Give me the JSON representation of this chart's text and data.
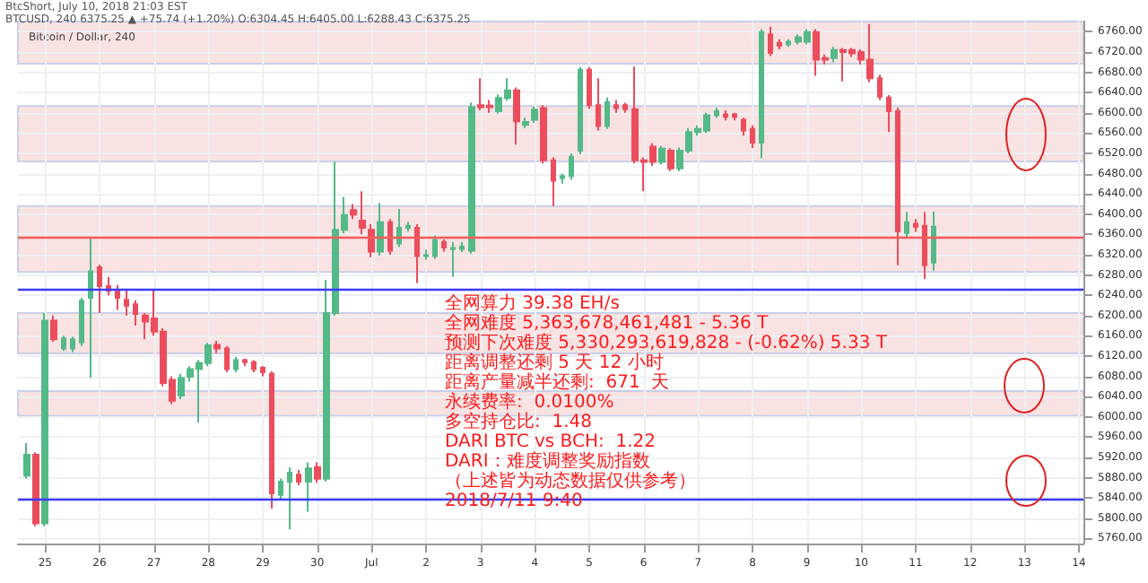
{
  "chart_data": {
    "type": "candlestick",
    "title": "Bitcoin / Dollar, 240",
    "subtitle": "BtcShort, July 10, 2018 21:03 EST",
    "annotations": [
      "BTCUSD, 240 6375.25 ▲ +75.74 (+1.20%) O:6304.45 H:6405.00 L:6288.43 C:6375.25",
      "全网算力 39.38 EH/s",
      "全网难度 5,363,678,461,481 - 5.36 T",
      "预测下次难度 5,330,293,619,828 - (-0.62%) 5.33 T",
      "距离调整还剩 5 天 12 小时",
      "距离产量减半还剩:  671  天",
      "永续费率:  0.0100%",
      "多空持仓比:  1.48",
      "DARI BTC vs BCH:  1.22",
      "DARI：难度调整奖励指数",
      "（上述皆为动态数据仅供参考）",
      "2018/7/11 9:40"
    ],
    "x": [
      "2018-06-24T16:00",
      "2018-06-24T20:00",
      "2018-06-25T00:00",
      "2018-06-25T04:00",
      "2018-06-25T08:00",
      "2018-06-25T12:00",
      "2018-06-25T16:00",
      "2018-06-25T20:00",
      "2018-06-26T00:00",
      "2018-06-26T04:00",
      "2018-06-26T08:00",
      "2018-06-26T12:00",
      "2018-06-26T16:00",
      "2018-06-26T20:00",
      "2018-06-27T00:00",
      "2018-06-27T04:00",
      "2018-06-27T08:00",
      "2018-06-27T12:00",
      "2018-06-27T16:00",
      "2018-06-27T20:00",
      "2018-06-28T00:00",
      "2018-06-28T04:00",
      "2018-06-28T08:00",
      "2018-06-28T12:00",
      "2018-06-28T16:00",
      "2018-06-28T20:00",
      "2018-06-29T00:00",
      "2018-06-29T04:00",
      "2018-06-29T08:00",
      "2018-06-29T12:00",
      "2018-06-29T16:00",
      "2018-06-29T20:00",
      "2018-06-30T00:00",
      "2018-06-30T04:00",
      "2018-06-30T08:00",
      "2018-06-30T12:00",
      "2018-06-30T16:00",
      "2018-06-30T20:00",
      "2018-07-01T00:00",
      "2018-07-01T04:00",
      "2018-07-01T08:00",
      "2018-07-01T12:00",
      "2018-07-01T16:00",
      "2018-07-01T20:00",
      "2018-07-02T00:00",
      "2018-07-02T04:00",
      "2018-07-02T08:00",
      "2018-07-02T12:00",
      "2018-07-02T16:00",
      "2018-07-02T20:00",
      "2018-07-03T00:00",
      "2018-07-03T04:00",
      "2018-07-03T08:00",
      "2018-07-03T12:00",
      "2018-07-03T16:00",
      "2018-07-03T20:00",
      "2018-07-04T00:00",
      "2018-07-04T04:00",
      "2018-07-04T08:00",
      "2018-07-04T12:00",
      "2018-07-04T16:00",
      "2018-07-04T20:00",
      "2018-07-05T00:00",
      "2018-07-05T04:00",
      "2018-07-05T08:00",
      "2018-07-05T12:00",
      "2018-07-05T16:00",
      "2018-07-05T20:00",
      "2018-07-06T00:00",
      "2018-07-06T04:00",
      "2018-07-06T08:00",
      "2018-07-06T12:00",
      "2018-07-06T16:00",
      "2018-07-06T20:00",
      "2018-07-07T00:00",
      "2018-07-07T04:00",
      "2018-07-07T08:00",
      "2018-07-07T12:00",
      "2018-07-07T16:00",
      "2018-07-07T20:00",
      "2018-07-08T00:00",
      "2018-07-08T04:00",
      "2018-07-08T08:00",
      "2018-07-08T12:00",
      "2018-07-08T16:00",
      "2018-07-08T20:00",
      "2018-07-09T00:00",
      "2018-07-09T04:00",
      "2018-07-09T08:00",
      "2018-07-09T12:00",
      "2018-07-09T16:00",
      "2018-07-09T20:00",
      "2018-07-10T00:00",
      "2018-07-10T04:00",
      "2018-07-10T08:00",
      "2018-07-10T12:00",
      "2018-07-10T16:00",
      "2018-07-10T20:00",
      "2018-07-11T00:00",
      "2018-07-11T04:00",
      "2018-07-11T08:00"
    ],
    "ohlc": [
      [
        5884,
        5948,
        5878,
        5925
      ],
      [
        5925,
        5930,
        5784,
        5790
      ],
      [
        5790,
        6205,
        5784,
        6190
      ],
      [
        6190,
        6200,
        6148,
        6153
      ],
      [
        6135,
        6160,
        6130,
        6155
      ],
      [
        6135,
        6158,
        6128,
        6153
      ],
      [
        6147,
        6235,
        6140,
        6229
      ],
      [
        6235,
        6352,
        6077,
        6287
      ],
      [
        6295,
        6300,
        6205,
        6258
      ],
      [
        6258,
        6276,
        6240,
        6249
      ],
      [
        6249,
        6260,
        6211,
        6235
      ],
      [
        6231,
        6250,
        6200,
        6219
      ],
      [
        6222,
        6230,
        6180,
        6203
      ],
      [
        6200,
        6205,
        6153,
        6188
      ],
      [
        6194,
        6252,
        6160,
        6168
      ],
      [
        6168,
        6175,
        6060,
        6067
      ],
      [
        6073,
        6080,
        6025,
        6032
      ],
      [
        6042,
        6085,
        6035,
        6077
      ],
      [
        6079,
        6100,
        6070,
        6094
      ],
      [
        6094,
        6112,
        5989,
        6106
      ],
      [
        6106,
        6146,
        6100,
        6141
      ],
      [
        6142,
        6150,
        6125,
        6135
      ],
      [
        6135,
        6140,
        6088,
        6094
      ],
      [
        6094,
        6118,
        6088,
        6112
      ],
      [
        6112,
        6115,
        6100,
        6108
      ],
      [
        6108,
        6112,
        6088,
        6094
      ],
      [
        6097,
        6100,
        6080,
        6088
      ],
      [
        6085,
        6090,
        5819,
        5849
      ],
      [
        5846,
        5878,
        5835,
        5872
      ],
      [
        5872,
        5900,
        5778,
        5890
      ],
      [
        5886,
        5895,
        5865,
        5872
      ],
      [
        5872,
        5910,
        5813,
        5898
      ],
      [
        5901,
        5910,
        5870,
        5878
      ],
      [
        5878,
        6270,
        5872,
        6205
      ],
      [
        6205,
        6504,
        6200,
        6369
      ],
      [
        6369,
        6434,
        6362,
        6398
      ],
      [
        6408,
        6420,
        6390,
        6399
      ],
      [
        6387,
        6445,
        6360,
        6373
      ],
      [
        6369,
        6380,
        6315,
        6326
      ],
      [
        6326,
        6422,
        6318,
        6384
      ],
      [
        6384,
        6390,
        6320,
        6328
      ],
      [
        6342,
        6410,
        6335,
        6373
      ],
      [
        6373,
        6385,
        6366,
        6377
      ],
      [
        6373,
        6380,
        6264,
        6317
      ],
      [
        6317,
        6330,
        6310,
        6319
      ],
      [
        6317,
        6358,
        6312,
        6349
      ],
      [
        6345,
        6350,
        6326,
        6334
      ],
      [
        6331,
        6345,
        6276,
        6333
      ],
      [
        6331,
        6345,
        6325,
        6336
      ],
      [
        6328,
        6620,
        6322,
        6611
      ],
      [
        6615,
        6668,
        6605,
        6611
      ],
      [
        6614,
        6625,
        6600,
        6611
      ],
      [
        6603,
        6636,
        6598,
        6629
      ],
      [
        6629,
        6668,
        6624,
        6644
      ],
      [
        6644,
        6650,
        6537,
        6583
      ],
      [
        6576,
        6590,
        6570,
        6582
      ],
      [
        6586,
        6612,
        6580,
        6606
      ],
      [
        6609,
        6615,
        6500,
        6506
      ],
      [
        6506,
        6512,
        6416,
        6466
      ],
      [
        6471,
        6480,
        6460,
        6475
      ],
      [
        6475,
        6520,
        6468,
        6513
      ],
      [
        6525,
        6690,
        6518,
        6685
      ],
      [
        6685,
        6690,
        6608,
        6615
      ],
      [
        6615,
        6668,
        6565,
        6574
      ],
      [
        6574,
        6630,
        6568,
        6621
      ],
      [
        6615,
        6625,
        6600,
        6609
      ],
      [
        6615,
        6620,
        6600,
        6607
      ],
      [
        6607,
        6691,
        6500,
        6506
      ],
      [
        6506,
        6512,
        6445,
        6503
      ],
      [
        6533,
        6540,
        6495,
        6503
      ],
      [
        6503,
        6535,
        6498,
        6529
      ],
      [
        6525,
        6530,
        6485,
        6490
      ],
      [
        6490,
        6532,
        6485,
        6525
      ],
      [
        6525,
        6570,
        6520,
        6562
      ],
      [
        6562,
        6575,
        6555,
        6568
      ],
      [
        6565,
        6600,
        6560,
        6595
      ],
      [
        6595,
        6610,
        6590,
        6603
      ],
      [
        6597,
        6605,
        6585,
        6592
      ],
      [
        6597,
        6600,
        6585,
        6592
      ],
      [
        6586,
        6590,
        6555,
        6565
      ],
      [
        6568,
        6575,
        6530,
        6541
      ],
      [
        6541,
        6765,
        6510,
        6759
      ],
      [
        6755,
        6770,
        6712,
        6718
      ],
      [
        6738,
        6745,
        6725,
        6732
      ],
      [
        6735,
        6745,
        6730,
        6740
      ],
      [
        6740,
        6755,
        6735,
        6749
      ],
      [
        6740,
        6765,
        6735,
        6759
      ],
      [
        6759,
        6765,
        6673,
        6705
      ],
      [
        6708,
        6715,
        6695,
        6705
      ],
      [
        6708,
        6730,
        6700,
        6724
      ],
      [
        6724,
        6728,
        6662,
        6720
      ],
      [
        6724,
        6728,
        6710,
        6717
      ],
      [
        6720,
        6725,
        6695,
        6705
      ],
      [
        6705,
        6775,
        6660,
        6668
      ],
      [
        6668,
        6675,
        6625,
        6632
      ],
      [
        6630,
        6635,
        6562,
        6603
      ],
      [
        6603,
        6610,
        6299,
        6366
      ],
      [
        6363,
        6404,
        6355,
        6384
      ],
      [
        6381,
        6390,
        6365,
        6375
      ],
      [
        6377,
        6404,
        6272,
        6299
      ],
      [
        6304.45,
        6405,
        6288.43,
        6375.25
      ]
    ],
    "xlim": [
      "2018-06-24T12:00",
      "2018-07-14T02:00"
    ],
    "xticks": [
      {
        "value": "2018-06-25",
        "label": "25"
      },
      {
        "value": "2018-06-26",
        "label": "26"
      },
      {
        "value": "2018-06-27",
        "label": "27"
      },
      {
        "value": "2018-06-28",
        "label": "28"
      },
      {
        "value": "2018-06-29",
        "label": "29"
      },
      {
        "value": "2018-06-30",
        "label": "30"
      },
      {
        "value": "2018-07-01",
        "label": "Jul"
      },
      {
        "value": "2018-07-02",
        "label": "2"
      },
      {
        "value": "2018-07-03",
        "label": "3"
      },
      {
        "value": "2018-07-04",
        "label": "4"
      },
      {
        "value": "2018-07-05",
        "label": "5"
      },
      {
        "value": "2018-07-06",
        "label": "6"
      },
      {
        "value": "2018-07-07",
        "label": "7"
      },
      {
        "value": "2018-07-08",
        "label": "8"
      },
      {
        "value": "2018-07-09",
        "label": "9"
      },
      {
        "value": "2018-07-10",
        "label": "10"
      },
      {
        "value": "2018-07-11",
        "label": "11"
      },
      {
        "value": "2018-07-12",
        "label": "12"
      },
      {
        "value": "2018-07-13",
        "label": "13"
      },
      {
        "value": "2018-07-14",
        "label": "14"
      }
    ],
    "ylim": [
      5750,
      6780
    ],
    "yticks": [
      {
        "value": 5760,
        "label": "5760.00"
      },
      {
        "value": 5800,
        "label": "5800.00"
      },
      {
        "value": 5840,
        "label": "5840.00"
      },
      {
        "value": 5880,
        "label": "5880.00"
      },
      {
        "value": 5920,
        "label": "5920.00"
      },
      {
        "value": 5960,
        "label": "5960.00"
      },
      {
        "value": 6000,
        "label": "6000.00"
      },
      {
        "value": 6040,
        "label": "6040.00"
      },
      {
        "value": 6080,
        "label": "6080.00"
      },
      {
        "value": 6120,
        "label": "6120.00"
      },
      {
        "value": 6160,
        "label": "6160.00"
      },
      {
        "value": 6200,
        "label": "6200.00"
      },
      {
        "value": 6240,
        "label": "6240.00"
      },
      {
        "value": 6280,
        "label": "6280.00"
      },
      {
        "value": 6320,
        "label": "6320.00"
      },
      {
        "value": 6360,
        "label": "6360.00"
      },
      {
        "value": 6400,
        "label": "6400.00"
      },
      {
        "value": 6440,
        "label": "6440.00"
      },
      {
        "value": 6480,
        "label": "6480.00"
      },
      {
        "value": 6520,
        "label": "6520.00"
      },
      {
        "value": 6560,
        "label": "6560.00"
      },
      {
        "value": 6600,
        "label": "6600.00"
      },
      {
        "value": 6640,
        "label": "6640.00"
      },
      {
        "value": 6680,
        "label": "6680.00"
      },
      {
        "value": 6720,
        "label": "6720.00"
      },
      {
        "value": 6760,
        "label": "6760.00"
      }
    ],
    "ref_lines": [
      {
        "axis": "y",
        "value": 6251,
        "color": "#3b3bf5"
      },
      {
        "axis": "y",
        "value": 5839,
        "color": "#3b3bf5"
      },
      {
        "axis": "y",
        "value": 6356,
        "color": "#f25b5b"
      }
    ],
    "bands": [
      {
        "axis": "y",
        "from": 6697,
        "to": 6780,
        "color": "#f8e2e2"
      },
      {
        "axis": "y",
        "from": 6504,
        "to": 6613,
        "color": "#f8e2e2"
      },
      {
        "axis": "y",
        "from": 6286,
        "to": 6416,
        "color": "#f8e2e2"
      },
      {
        "axis": "y",
        "from": 6125,
        "to": 6205,
        "color": "#f8e2e2"
      },
      {
        "axis": "y",
        "from": 6002,
        "to": 6051,
        "color": "#f8e2e2"
      }
    ],
    "grid": true
  }
}
